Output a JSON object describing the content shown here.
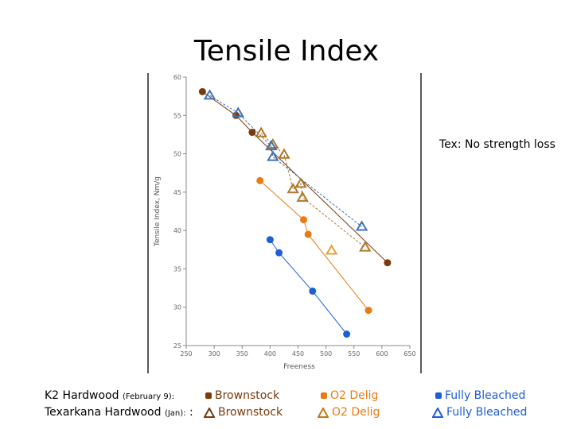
{
  "slide": {
    "title": "Tensile Index",
    "note": "Tex: No strength loss"
  },
  "legend": {
    "row1_label": "K2 Hardwood",
    "row1_sub": "(February 9):",
    "row2_label": "Texarkana Hardwood",
    "row2_sub": "(Jan):",
    "row2_colon": ":",
    "items": {
      "brownstock": "Brownstock",
      "o2delig": "O2 Delig",
      "fullybleached": "Fully Bleached"
    }
  },
  "colors": {
    "brownstock": "#7a3b0c",
    "o2delig": "#e87b12",
    "fullybleached": "#1c5fd6",
    "tex_brownstock": "#b0782a",
    "tex_o2": "#e0a040",
    "tex_fully": "#3b74b8"
  },
  "chart_data": {
    "type": "scatter",
    "title": "",
    "xlabel": "Freeness",
    "ylabel": "Tensile Index, Nm/g",
    "xlim": [
      250,
      650
    ],
    "ylim": [
      25,
      60
    ],
    "xticks": [
      "250",
      "300",
      "350",
      "400",
      "450",
      "500",
      "550",
      "600",
      "650"
    ],
    "yticks": [
      "25",
      "30",
      "35",
      "40",
      "45",
      "50",
      "55",
      "60"
    ],
    "series": [
      {
        "key": "k2_brownstock",
        "marker": "square",
        "colorKey": "brownstock",
        "x": [
          279,
          339,
          368,
          610
        ],
        "y": [
          58.1,
          55.0,
          52.8,
          35.8
        ]
      },
      {
        "key": "k2_o2",
        "marker": "square",
        "colorKey": "o2delig",
        "x": [
          382,
          460,
          468,
          576
        ],
        "y": [
          46.5,
          41.4,
          39.5,
          29.6
        ]
      },
      {
        "key": "k2_fully",
        "marker": "square",
        "colorKey": "fullybleached",
        "x": [
          400,
          416,
          476,
          537
        ],
        "y": [
          38.8,
          37.1,
          32.1,
          26.5
        ]
      },
      {
        "key": "tex_brownstock",
        "marker": "triangle",
        "colorKey": "tex_brownstock",
        "x": [
          384,
          405,
          425,
          441,
          455,
          458,
          570
        ],
        "y": [
          52.7,
          51.2,
          49.9,
          45.4,
          46.1,
          44.3,
          37.8
        ]
      },
      {
        "key": "tex_o2",
        "marker": "triangle",
        "colorKey": "tex_o2",
        "x": [
          510
        ],
        "y": [
          37.4
        ]
      },
      {
        "key": "tex_fully",
        "marker": "triangle",
        "colorKey": "tex_fully",
        "x": [
          292,
          343,
          402,
          405,
          564
        ],
        "y": [
          57.6,
          55.3,
          51.0,
          49.6,
          40.5
        ]
      }
    ]
  }
}
